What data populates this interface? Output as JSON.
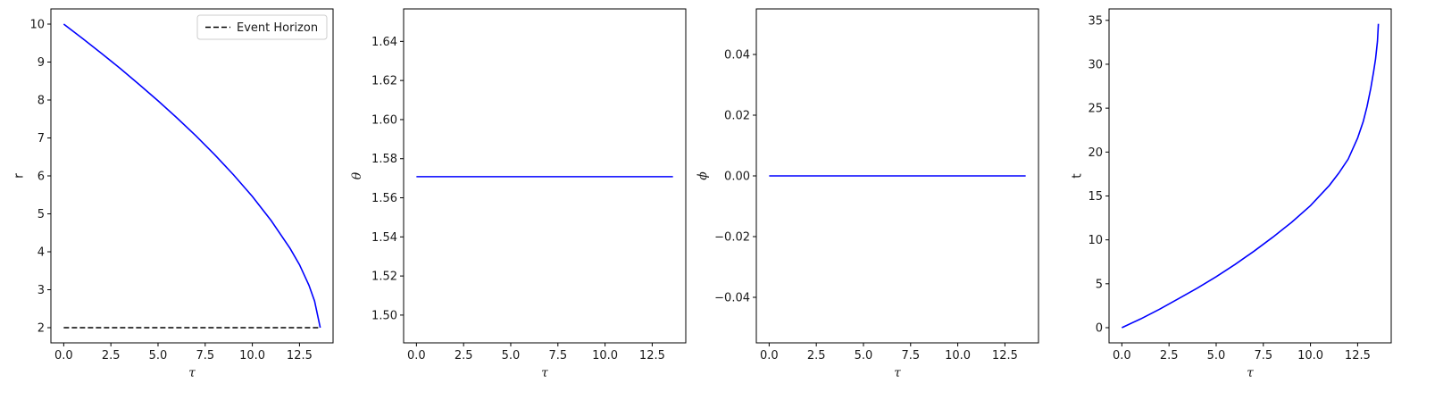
{
  "chart_data": [
    {
      "type": "line",
      "xlabel": "τ",
      "ylabel": "r",
      "xlim": [
        -0.68,
        14.28
      ],
      "ylim": [
        1.6,
        10.4
      ],
      "xticks": [
        0.0,
        2.5,
        5.0,
        7.5,
        10.0,
        12.5
      ],
      "xtick_labels": [
        "0.0",
        "2.5",
        "5.0",
        "7.5",
        "10.0",
        "12.5"
      ],
      "yticks": [
        2,
        3,
        4,
        5,
        6,
        7,
        8,
        9,
        10
      ],
      "ytick_labels": [
        "2",
        "3",
        "4",
        "5",
        "6",
        "7",
        "8",
        "9",
        "10"
      ],
      "grid": false,
      "legend": {
        "placement": "top-right",
        "entries": [
          "Event Horizon"
        ]
      },
      "series": [
        {
          "color": "#0000ff",
          "style": "solid",
          "x": [
            0,
            1,
            2,
            3,
            4,
            5,
            6,
            7,
            8,
            9,
            10,
            11,
            12,
            12.5,
            13,
            13.3,
            13.6
          ],
          "y": [
            10,
            9.62,
            9.23,
            8.83,
            8.41,
            7.98,
            7.53,
            7.06,
            6.56,
            6.03,
            5.46,
            4.82,
            4.09,
            3.66,
            3.12,
            2.7,
            2.0
          ]
        },
        {
          "name": "Event Horizon",
          "color": "#000000",
          "style": "dashed",
          "x": [
            0,
            13.6
          ],
          "y": [
            2,
            2
          ]
        }
      ]
    },
    {
      "type": "line",
      "xlabel": "τ",
      "ylabel": "θ",
      "xlim": [
        -0.68,
        14.28
      ],
      "ylim": [
        1.4858,
        1.6566
      ],
      "xticks": [
        0.0,
        2.5,
        5.0,
        7.5,
        10.0,
        12.5
      ],
      "xtick_labels": [
        "0.0",
        "2.5",
        "5.0",
        "7.5",
        "10.0",
        "12.5"
      ],
      "yticks": [
        1.5,
        1.52,
        1.54,
        1.56,
        1.58,
        1.6,
        1.62,
        1.64
      ],
      "ytick_labels": [
        "1.50",
        "1.52",
        "1.54",
        "1.56",
        "1.58",
        "1.60",
        "1.62",
        "1.64"
      ],
      "grid": false,
      "series": [
        {
          "color": "#0000ff",
          "style": "solid",
          "x": [
            0,
            13.6
          ],
          "y": [
            1.5708,
            1.5708
          ]
        }
      ]
    },
    {
      "type": "line",
      "xlabel": "τ",
      "ylabel": "ϕ",
      "xlim": [
        -0.68,
        14.28
      ],
      "ylim": [
        -0.055,
        0.055
      ],
      "xticks": [
        0.0,
        2.5,
        5.0,
        7.5,
        10.0,
        12.5
      ],
      "xtick_labels": [
        "0.0",
        "2.5",
        "5.0",
        "7.5",
        "10.0",
        "12.5"
      ],
      "yticks": [
        -0.04,
        -0.02,
        0.0,
        0.02,
        0.04
      ],
      "ytick_labels": [
        "−0.04",
        "−0.02",
        "0.00",
        "0.02",
        "0.04"
      ],
      "grid": false,
      "series": [
        {
          "color": "#0000ff",
          "style": "solid",
          "x": [
            0,
            13.6
          ],
          "y": [
            0,
            0
          ]
        }
      ]
    },
    {
      "type": "line",
      "xlabel": "τ",
      "ylabel": "t",
      "xlim": [
        -0.68,
        14.28
      ],
      "ylim": [
        -1.73,
        36.3
      ],
      "xticks": [
        0.0,
        2.5,
        5.0,
        7.5,
        10.0,
        12.5
      ],
      "xtick_labels": [
        "0.0",
        "2.5",
        "5.0",
        "7.5",
        "10.0",
        "12.5"
      ],
      "yticks": [
        0,
        5,
        10,
        15,
        20,
        25,
        30,
        35
      ],
      "ytick_labels": [
        "0",
        "5",
        "10",
        "15",
        "20",
        "25",
        "30",
        "35"
      ],
      "grid": false,
      "series": [
        {
          "color": "#0000ff",
          "style": "solid",
          "x": [
            0,
            1,
            2,
            3,
            4,
            5,
            6,
            7,
            8,
            9,
            10,
            11,
            11.5,
            12,
            12.5,
            12.8,
            13.0,
            13.2,
            13.35,
            13.45,
            13.55,
            13.6
          ],
          "y": [
            0,
            1.0,
            2.1,
            3.3,
            4.5,
            5.8,
            7.2,
            8.7,
            10.3,
            12.0,
            13.9,
            16.2,
            17.6,
            19.2,
            21.6,
            23.5,
            25.2,
            27.3,
            29.2,
            30.6,
            32.6,
            34.6
          ]
        }
      ]
    }
  ]
}
